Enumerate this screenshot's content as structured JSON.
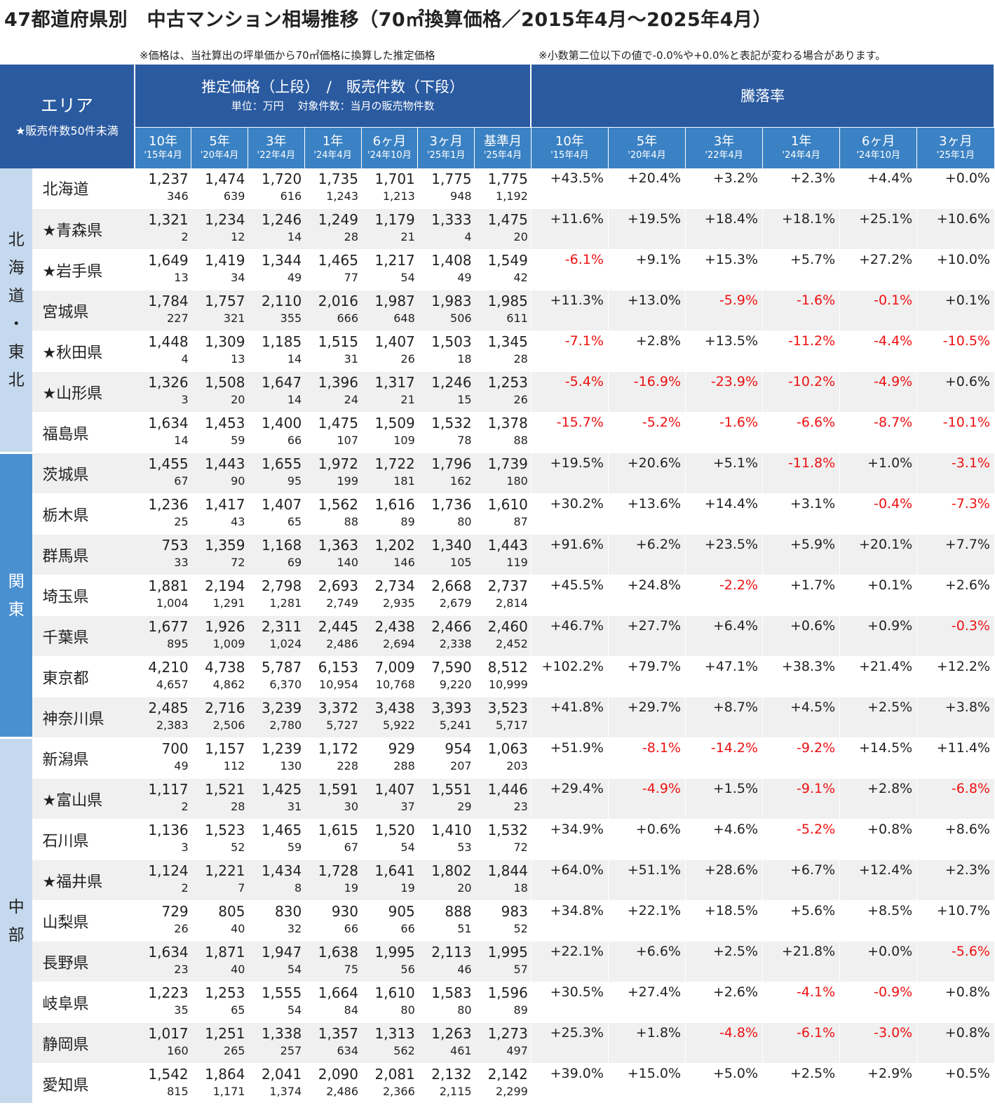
{
  "title": "47都道府県別　中古マンション相場推移（70㎡換算価格／2015年4月～2025年4月）",
  "notes": {
    "left": "※価格は、当社算出の坪単価から70㎡価格に換算した推定価格",
    "right": "※小数第二位以下の値で-0.0%や+0.0%と表記が変わる場合があります。"
  },
  "header": {
    "area": "エリア",
    "area_sub": "★販売件数50件未満",
    "price": "推定価格（上段）　/　販売件数（下段）",
    "price_sub": "単位：万円　 対象件数：当月の販売物件数",
    "rate": "騰落率"
  },
  "price_cols": [
    {
      "a": "10年",
      "b": "'15年4月"
    },
    {
      "a": "5年",
      "b": "'20年4月"
    },
    {
      "a": "3年",
      "b": "'22年4月"
    },
    {
      "a": "1年",
      "b": "'24年4月"
    },
    {
      "a": "6ヶ月",
      "b": "'24年10月"
    },
    {
      "a": "3ヶ月",
      "b": "'25年1月"
    },
    {
      "a": "基準月",
      "b": "'25年4月"
    }
  ],
  "rate_cols": [
    {
      "a": "10年",
      "b": "'15年4月"
    },
    {
      "a": "5年",
      "b": "'20年4月"
    },
    {
      "a": "3年",
      "b": "'22年4月"
    },
    {
      "a": "1年",
      "b": "'24年4月"
    },
    {
      "a": "6ヶ月",
      "b": "'24年10月"
    },
    {
      "a": "3ヶ月",
      "b": "'25年1月"
    }
  ],
  "regions": [
    {
      "name": [
        "北",
        "海",
        "道",
        "・",
        "東",
        "北"
      ],
      "style": "r1",
      "rows": [
        {
          "pref": "北海道",
          "prices": [
            "1,237",
            "1,474",
            "1,720",
            "1,735",
            "1,701",
            "1,775",
            "1,775"
          ],
          "counts": [
            "346",
            "639",
            "616",
            "1,243",
            "1,213",
            "948",
            "1,192"
          ],
          "rates": [
            "+43.5%",
            "+20.4%",
            "+3.2%",
            "+2.3%",
            "+4.4%",
            "+0.0%"
          ]
        },
        {
          "pref": "★青森県",
          "prices": [
            "1,321",
            "1,234",
            "1,246",
            "1,249",
            "1,179",
            "1,333",
            "1,475"
          ],
          "counts": [
            "2",
            "12",
            "14",
            "28",
            "21",
            "4",
            "20"
          ],
          "rates": [
            "+11.6%",
            "+19.5%",
            "+18.4%",
            "+18.1%",
            "+25.1%",
            "+10.6%"
          ]
        },
        {
          "pref": "★岩手県",
          "prices": [
            "1,649",
            "1,419",
            "1,344",
            "1,465",
            "1,217",
            "1,408",
            "1,549"
          ],
          "counts": [
            "13",
            "34",
            "49",
            "77",
            "54",
            "49",
            "42"
          ],
          "rates": [
            "-6.1%",
            "+9.1%",
            "+15.3%",
            "+5.7%",
            "+27.2%",
            "+10.0%"
          ]
        },
        {
          "pref": "宮城県",
          "prices": [
            "1,784",
            "1,757",
            "2,110",
            "2,016",
            "1,987",
            "1,983",
            "1,985"
          ],
          "counts": [
            "227",
            "321",
            "355",
            "666",
            "648",
            "506",
            "611"
          ],
          "rates": [
            "+11.3%",
            "+13.0%",
            "-5.9%",
            "-1.6%",
            "-0.1%",
            "+0.1%"
          ]
        },
        {
          "pref": "★秋田県",
          "prices": [
            "1,448",
            "1,309",
            "1,185",
            "1,515",
            "1,407",
            "1,503",
            "1,345"
          ],
          "counts": [
            "4",
            "13",
            "14",
            "31",
            "26",
            "18",
            "28"
          ],
          "rates": [
            "-7.1%",
            "+2.8%",
            "+13.5%",
            "-11.2%",
            "-4.4%",
            "-10.5%"
          ]
        },
        {
          "pref": "★山形県",
          "prices": [
            "1,326",
            "1,508",
            "1,647",
            "1,396",
            "1,317",
            "1,246",
            "1,253"
          ],
          "counts": [
            "3",
            "20",
            "14",
            "24",
            "21",
            "15",
            "26"
          ],
          "rates": [
            "-5.4%",
            "-16.9%",
            "-23.9%",
            "-10.2%",
            "-4.9%",
            "+0.6%"
          ]
        },
        {
          "pref": "福島県",
          "prices": [
            "1,634",
            "1,453",
            "1,400",
            "1,475",
            "1,509",
            "1,532",
            "1,378"
          ],
          "counts": [
            "14",
            "59",
            "66",
            "107",
            "109",
            "78",
            "88"
          ],
          "rates": [
            "-15.7%",
            "-5.2%",
            "-1.6%",
            "-6.6%",
            "-8.7%",
            "-10.1%"
          ]
        }
      ]
    },
    {
      "name": [
        "関",
        "東"
      ],
      "style": "r2",
      "rows": [
        {
          "pref": "茨城県",
          "prices": [
            "1,455",
            "1,443",
            "1,655",
            "1,972",
            "1,722",
            "1,796",
            "1,739"
          ],
          "counts": [
            "67",
            "90",
            "95",
            "199",
            "181",
            "162",
            "180"
          ],
          "rates": [
            "+19.5%",
            "+20.6%",
            "+5.1%",
            "-11.8%",
            "+1.0%",
            "-3.1%"
          ]
        },
        {
          "pref": "栃木県",
          "prices": [
            "1,236",
            "1,417",
            "1,407",
            "1,562",
            "1,616",
            "1,736",
            "1,610"
          ],
          "counts": [
            "25",
            "43",
            "65",
            "88",
            "89",
            "80",
            "87"
          ],
          "rates": [
            "+30.2%",
            "+13.6%",
            "+14.4%",
            "+3.1%",
            "-0.4%",
            "-7.3%"
          ]
        },
        {
          "pref": "群馬県",
          "prices": [
            "753",
            "1,359",
            "1,168",
            "1,363",
            "1,202",
            "1,340",
            "1,443"
          ],
          "counts": [
            "33",
            "72",
            "69",
            "140",
            "146",
            "105",
            "119"
          ],
          "rates": [
            "+91.6%",
            "+6.2%",
            "+23.5%",
            "+5.9%",
            "+20.1%",
            "+7.7%"
          ]
        },
        {
          "pref": "埼玉県",
          "prices": [
            "1,881",
            "2,194",
            "2,798",
            "2,693",
            "2,734",
            "2,668",
            "2,737"
          ],
          "counts": [
            "1,004",
            "1,291",
            "1,281",
            "2,749",
            "2,935",
            "2,679",
            "2,814"
          ],
          "rates": [
            "+45.5%",
            "+24.8%",
            "-2.2%",
            "+1.7%",
            "+0.1%",
            "+2.6%"
          ]
        },
        {
          "pref": "千葉県",
          "prices": [
            "1,677",
            "1,926",
            "2,311",
            "2,445",
            "2,438",
            "2,466",
            "2,460"
          ],
          "counts": [
            "895",
            "1,009",
            "1,024",
            "2,486",
            "2,694",
            "2,338",
            "2,452"
          ],
          "rates": [
            "+46.7%",
            "+27.7%",
            "+6.4%",
            "+0.6%",
            "+0.9%",
            "-0.3%"
          ]
        },
        {
          "pref": "東京都",
          "prices": [
            "4,210",
            "4,738",
            "5,787",
            "6,153",
            "7,009",
            "7,590",
            "8,512"
          ],
          "counts": [
            "4,657",
            "4,862",
            "6,370",
            "10,954",
            "10,768",
            "9,220",
            "10,999"
          ],
          "rates": [
            "+102.2%",
            "+79.7%",
            "+47.1%",
            "+38.3%",
            "+21.4%",
            "+12.2%"
          ]
        },
        {
          "pref": "神奈川県",
          "prices": [
            "2,485",
            "2,716",
            "3,239",
            "3,372",
            "3,438",
            "3,393",
            "3,523"
          ],
          "counts": [
            "2,383",
            "2,506",
            "2,780",
            "5,727",
            "5,922",
            "5,241",
            "5,717"
          ],
          "rates": [
            "+41.8%",
            "+29.7%",
            "+8.7%",
            "+4.5%",
            "+2.5%",
            "+3.8%"
          ]
        }
      ]
    },
    {
      "name": [
        "中",
        "部"
      ],
      "style": "r3",
      "rows": [
        {
          "pref": "新潟県",
          "prices": [
            "700",
            "1,157",
            "1,239",
            "1,172",
            "929",
            "954",
            "1,063"
          ],
          "counts": [
            "49",
            "112",
            "130",
            "228",
            "288",
            "207",
            "203"
          ],
          "rates": [
            "+51.9%",
            "-8.1%",
            "-14.2%",
            "-9.2%",
            "+14.5%",
            "+11.4%"
          ]
        },
        {
          "pref": "★富山県",
          "prices": [
            "1,117",
            "1,521",
            "1,425",
            "1,591",
            "1,407",
            "1,551",
            "1,446"
          ],
          "counts": [
            "2",
            "28",
            "31",
            "30",
            "37",
            "29",
            "23"
          ],
          "rates": [
            "+29.4%",
            "-4.9%",
            "+1.5%",
            "-9.1%",
            "+2.8%",
            "-6.8%"
          ]
        },
        {
          "pref": "石川県",
          "prices": [
            "1,136",
            "1,523",
            "1,465",
            "1,615",
            "1,520",
            "1,410",
            "1,532"
          ],
          "counts": [
            "3",
            "52",
            "59",
            "67",
            "54",
            "53",
            "72"
          ],
          "rates": [
            "+34.9%",
            "+0.6%",
            "+4.6%",
            "-5.2%",
            "+0.8%",
            "+8.6%"
          ]
        },
        {
          "pref": "★福井県",
          "prices": [
            "1,124",
            "1,221",
            "1,434",
            "1,728",
            "1,641",
            "1,802",
            "1,844"
          ],
          "counts": [
            "2",
            "7",
            "8",
            "19",
            "19",
            "20",
            "18"
          ],
          "rates": [
            "+64.0%",
            "+51.1%",
            "+28.6%",
            "+6.7%",
            "+12.4%",
            "+2.3%"
          ]
        },
        {
          "pref": "山梨県",
          "prices": [
            "729",
            "805",
            "830",
            "930",
            "905",
            "888",
            "983"
          ],
          "counts": [
            "26",
            "40",
            "32",
            "66",
            "66",
            "51",
            "52"
          ],
          "rates": [
            "+34.8%",
            "+22.1%",
            "+18.5%",
            "+5.6%",
            "+8.5%",
            "+10.7%"
          ]
        },
        {
          "pref": "長野県",
          "prices": [
            "1,634",
            "1,871",
            "1,947",
            "1,638",
            "1,995",
            "2,113",
            "1,995"
          ],
          "counts": [
            "23",
            "40",
            "54",
            "75",
            "56",
            "46",
            "57"
          ],
          "rates": [
            "+22.1%",
            "+6.6%",
            "+2.5%",
            "+21.8%",
            "+0.0%",
            "-5.6%"
          ]
        },
        {
          "pref": "岐阜県",
          "prices": [
            "1,223",
            "1,253",
            "1,555",
            "1,664",
            "1,610",
            "1,583",
            "1,596"
          ],
          "counts": [
            "35",
            "65",
            "54",
            "84",
            "80",
            "80",
            "89"
          ],
          "rates": [
            "+30.5%",
            "+27.4%",
            "+2.6%",
            "-4.1%",
            "-0.9%",
            "+0.8%"
          ]
        },
        {
          "pref": "静岡県",
          "prices": [
            "1,017",
            "1,251",
            "1,338",
            "1,357",
            "1,313",
            "1,263",
            "1,273"
          ],
          "counts": [
            "160",
            "265",
            "257",
            "634",
            "562",
            "461",
            "497"
          ],
          "rates": [
            "+25.3%",
            "+1.8%",
            "-4.8%",
            "-6.1%",
            "-3.0%",
            "+0.8%"
          ]
        },
        {
          "pref": "愛知県",
          "prices": [
            "1,542",
            "1,864",
            "2,041",
            "2,090",
            "2,081",
            "2,132",
            "2,142"
          ],
          "counts": [
            "815",
            "1,171",
            "1,374",
            "2,486",
            "2,366",
            "2,115",
            "2,299"
          ],
          "rates": [
            "+39.0%",
            "+15.0%",
            "+5.0%",
            "+2.5%",
            "+2.9%",
            "+0.5%"
          ]
        }
      ]
    }
  ],
  "colors": {
    "header": "#2a5aa0",
    "subheader": "#3b82c4",
    "region_light": "#c5d9ee",
    "region_dark": "#4a90d0",
    "negative": "#e11111"
  }
}
